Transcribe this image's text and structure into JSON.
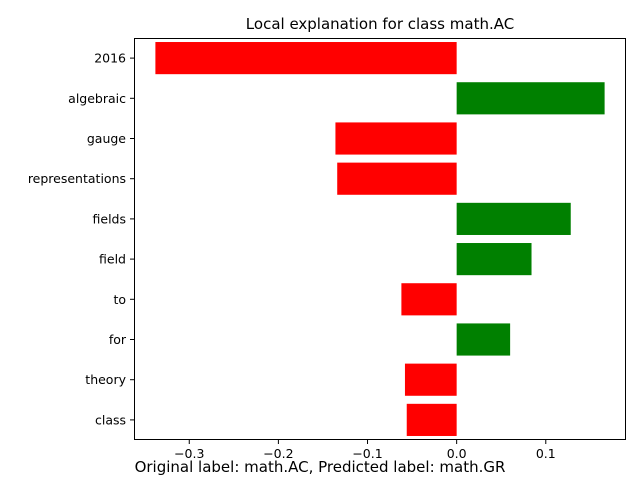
{
  "chart_data": {
    "type": "bar",
    "orientation": "horizontal",
    "title": "Local explanation for class math.AC",
    "xlabel": "",
    "ylabel": "",
    "categories": [
      "2016",
      "algebraic",
      "gauge",
      "representations",
      "fields",
      "field",
      "to",
      "for",
      "theory",
      "class"
    ],
    "values": [
      -0.338,
      0.166,
      -0.136,
      -0.134,
      0.128,
      0.084,
      -0.062,
      0.06,
      -0.058,
      -0.056
    ],
    "xlim": [
      -0.362,
      0.19
    ],
    "xticks": [
      -0.3,
      -0.2,
      -0.1,
      0.0,
      0.1
    ],
    "xtick_labels": [
      "−0.3",
      "−0.2",
      "−0.1",
      "0.0",
      "0.1"
    ],
    "grid": false,
    "colors": {
      "positive": "#008000",
      "negative": "#ff0000"
    }
  },
  "caption": "Original label: math.AC, Predicted label: math.GR"
}
